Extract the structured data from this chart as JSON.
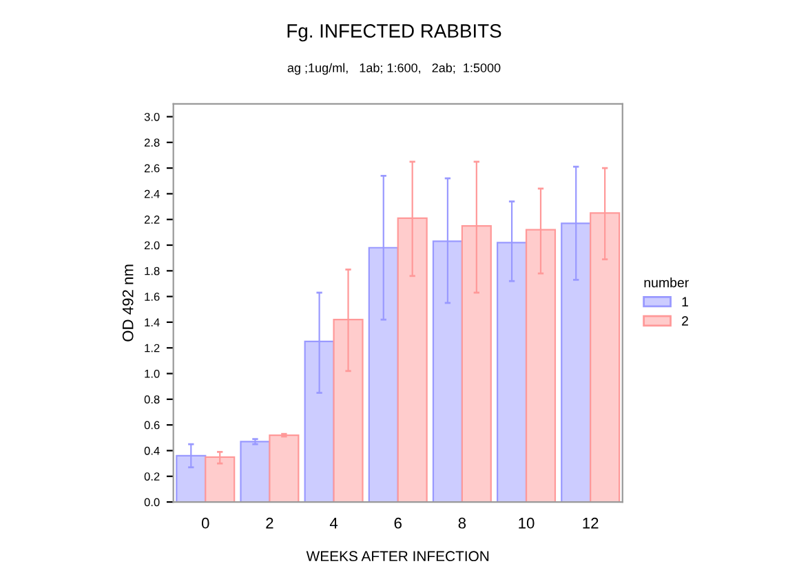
{
  "chart_data": {
    "type": "bar",
    "title": "Fg. INFECTED RABBITS",
    "subtitle": "ag ;1ug/ml,   1ab; 1:600,   2ab;  1:5000",
    "xlabel": "WEEKS AFTER INFECTION",
    "ylabel": "OD 492 nm",
    "legend_title": "number",
    "categories": [
      "0",
      "2",
      "4",
      "6",
      "8",
      "10",
      "12"
    ],
    "series": [
      {
        "name": "1",
        "color": "#ccccff",
        "values": [
          0.36,
          0.47,
          1.25,
          1.98,
          2.03,
          2.02,
          2.17
        ],
        "errors": [
          [
            0.27,
            0.45
          ],
          [
            0.45,
            0.49
          ],
          [
            0.85,
            1.63
          ],
          [
            1.42,
            2.54
          ],
          [
            1.55,
            2.52
          ],
          [
            1.72,
            2.34
          ],
          [
            1.73,
            2.61
          ]
        ]
      },
      {
        "name": "2",
        "color": "#ffcccc",
        "values": [
          0.35,
          0.52,
          1.42,
          2.21,
          2.15,
          2.12,
          2.25
        ],
        "errors": [
          [
            0.3,
            0.39
          ],
          [
            0.51,
            0.53
          ],
          [
            1.02,
            1.81
          ],
          [
            1.76,
            2.65
          ],
          [
            1.63,
            2.65
          ],
          [
            1.78,
            2.44
          ],
          [
            1.89,
            2.6
          ]
        ]
      }
    ],
    "ylim": [
      0,
      3.1
    ],
    "yticks": [
      {
        "value": 0,
        "label": "0.0"
      },
      0.2,
      0.4,
      0.6,
      0.8,
      {
        "value": 1,
        "label": "1.0"
      },
      1.2,
      1.4,
      1.6,
      1.8,
      {
        "value": 2,
        "label": "2.0"
      },
      2.2,
      2.4,
      2.6,
      2.8,
      {
        "value": 3,
        "label": "3.0"
      }
    ],
    "grid": false,
    "legend": "right"
  }
}
